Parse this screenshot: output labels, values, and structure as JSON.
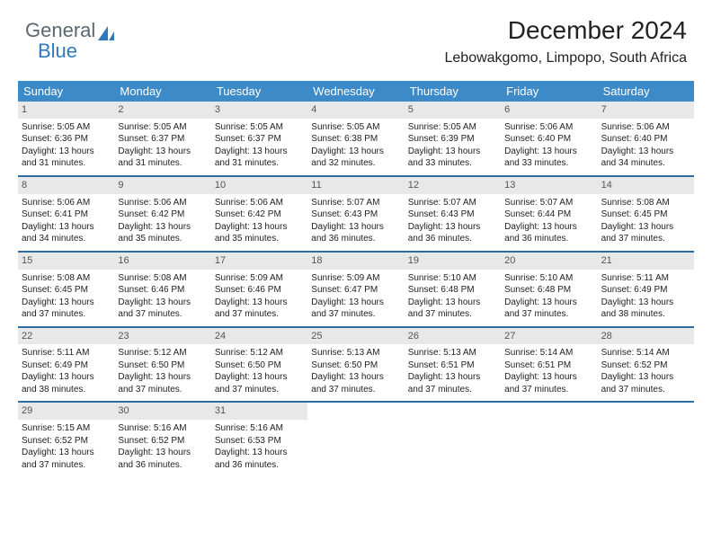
{
  "logo": {
    "word1": "General",
    "word2": "Blue"
  },
  "header": {
    "title": "December 2024",
    "subtitle": "Lebowakgomo, Limpopo, South Africa"
  },
  "colors": {
    "header_bg": "#3c8ac7",
    "header_text": "#ffffff",
    "week_divider": "#2f6ca3",
    "daynum_bg": "#e8e8e8",
    "text": "#222222",
    "logo_gray": "#5b6770",
    "logo_blue": "#2f79bd"
  },
  "day_names": [
    "Sunday",
    "Monday",
    "Tuesday",
    "Wednesday",
    "Thursday",
    "Friday",
    "Saturday"
  ],
  "weeks": [
    [
      {
        "n": "1",
        "sr": "5:05 AM",
        "ss": "6:36 PM",
        "dl": "13 hours and 31 minutes."
      },
      {
        "n": "2",
        "sr": "5:05 AM",
        "ss": "6:37 PM",
        "dl": "13 hours and 31 minutes."
      },
      {
        "n": "3",
        "sr": "5:05 AM",
        "ss": "6:37 PM",
        "dl": "13 hours and 31 minutes."
      },
      {
        "n": "4",
        "sr": "5:05 AM",
        "ss": "6:38 PM",
        "dl": "13 hours and 32 minutes."
      },
      {
        "n": "5",
        "sr": "5:05 AM",
        "ss": "6:39 PM",
        "dl": "13 hours and 33 minutes."
      },
      {
        "n": "6",
        "sr": "5:06 AM",
        "ss": "6:40 PM",
        "dl": "13 hours and 33 minutes."
      },
      {
        "n": "7",
        "sr": "5:06 AM",
        "ss": "6:40 PM",
        "dl": "13 hours and 34 minutes."
      }
    ],
    [
      {
        "n": "8",
        "sr": "5:06 AM",
        "ss": "6:41 PM",
        "dl": "13 hours and 34 minutes."
      },
      {
        "n": "9",
        "sr": "5:06 AM",
        "ss": "6:42 PM",
        "dl": "13 hours and 35 minutes."
      },
      {
        "n": "10",
        "sr": "5:06 AM",
        "ss": "6:42 PM",
        "dl": "13 hours and 35 minutes."
      },
      {
        "n": "11",
        "sr": "5:07 AM",
        "ss": "6:43 PM",
        "dl": "13 hours and 36 minutes."
      },
      {
        "n": "12",
        "sr": "5:07 AM",
        "ss": "6:43 PM",
        "dl": "13 hours and 36 minutes."
      },
      {
        "n": "13",
        "sr": "5:07 AM",
        "ss": "6:44 PM",
        "dl": "13 hours and 36 minutes."
      },
      {
        "n": "14",
        "sr": "5:08 AM",
        "ss": "6:45 PM",
        "dl": "13 hours and 37 minutes."
      }
    ],
    [
      {
        "n": "15",
        "sr": "5:08 AM",
        "ss": "6:45 PM",
        "dl": "13 hours and 37 minutes."
      },
      {
        "n": "16",
        "sr": "5:08 AM",
        "ss": "6:46 PM",
        "dl": "13 hours and 37 minutes."
      },
      {
        "n": "17",
        "sr": "5:09 AM",
        "ss": "6:46 PM",
        "dl": "13 hours and 37 minutes."
      },
      {
        "n": "18",
        "sr": "5:09 AM",
        "ss": "6:47 PM",
        "dl": "13 hours and 37 minutes."
      },
      {
        "n": "19",
        "sr": "5:10 AM",
        "ss": "6:48 PM",
        "dl": "13 hours and 37 minutes."
      },
      {
        "n": "20",
        "sr": "5:10 AM",
        "ss": "6:48 PM",
        "dl": "13 hours and 37 minutes."
      },
      {
        "n": "21",
        "sr": "5:11 AM",
        "ss": "6:49 PM",
        "dl": "13 hours and 38 minutes."
      }
    ],
    [
      {
        "n": "22",
        "sr": "5:11 AM",
        "ss": "6:49 PM",
        "dl": "13 hours and 38 minutes."
      },
      {
        "n": "23",
        "sr": "5:12 AM",
        "ss": "6:50 PM",
        "dl": "13 hours and 37 minutes."
      },
      {
        "n": "24",
        "sr": "5:12 AM",
        "ss": "6:50 PM",
        "dl": "13 hours and 37 minutes."
      },
      {
        "n": "25",
        "sr": "5:13 AM",
        "ss": "6:50 PM",
        "dl": "13 hours and 37 minutes."
      },
      {
        "n": "26",
        "sr": "5:13 AM",
        "ss": "6:51 PM",
        "dl": "13 hours and 37 minutes."
      },
      {
        "n": "27",
        "sr": "5:14 AM",
        "ss": "6:51 PM",
        "dl": "13 hours and 37 minutes."
      },
      {
        "n": "28",
        "sr": "5:14 AM",
        "ss": "6:52 PM",
        "dl": "13 hours and 37 minutes."
      }
    ],
    [
      {
        "n": "29",
        "sr": "5:15 AM",
        "ss": "6:52 PM",
        "dl": "13 hours and 37 minutes."
      },
      {
        "n": "30",
        "sr": "5:16 AM",
        "ss": "6:52 PM",
        "dl": "13 hours and 36 minutes."
      },
      {
        "n": "31",
        "sr": "5:16 AM",
        "ss": "6:53 PM",
        "dl": "13 hours and 36 minutes."
      },
      null,
      null,
      null,
      null
    ]
  ],
  "labels": {
    "sunrise": "Sunrise:",
    "sunset": "Sunset:",
    "daylight": "Daylight:"
  }
}
